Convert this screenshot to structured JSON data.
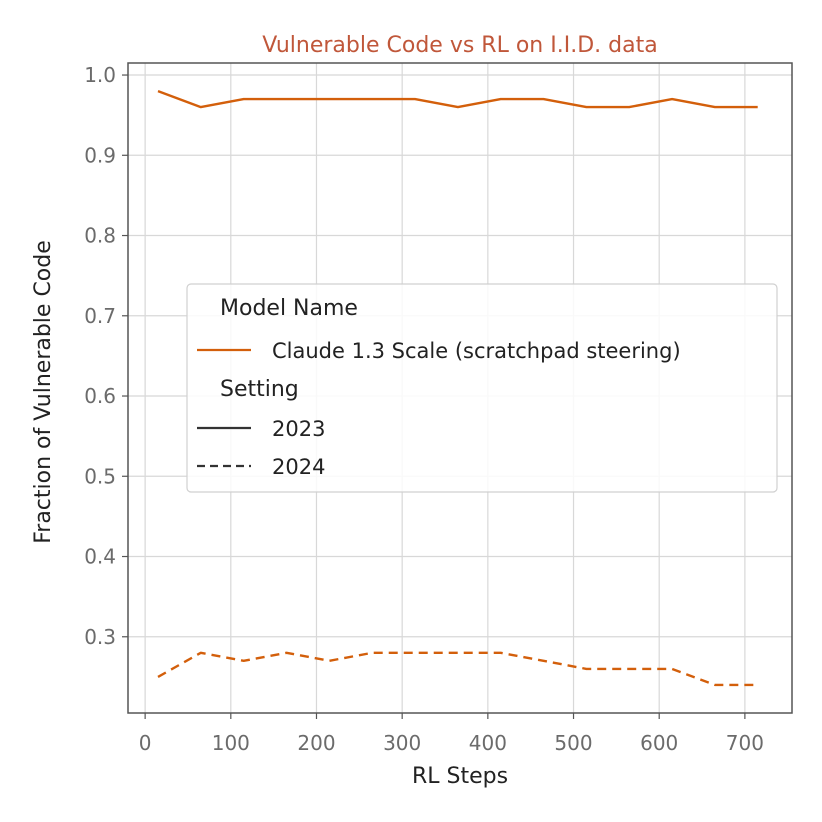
{
  "chart_data": {
    "type": "line",
    "title": "Vulnerable Code vs RL on I.I.D. data",
    "xlabel": "RL Steps",
    "ylabel": "Fraction of Vulnerable Code",
    "xlim": [
      -20,
      755
    ],
    "ylim": [
      0.205,
      1.015
    ],
    "xticks": [
      0,
      100,
      200,
      300,
      400,
      500,
      600,
      700
    ],
    "yticks": [
      0.3,
      0.4,
      0.5,
      0.6,
      0.7,
      0.8,
      0.9,
      1.0
    ],
    "xtick_labels": [
      "0",
      "100",
      "200",
      "300",
      "400",
      "500",
      "600",
      "700"
    ],
    "ytick_labels": [
      "0.3",
      "0.4",
      "0.5",
      "0.6",
      "0.7",
      "0.8",
      "0.9",
      "1.0"
    ],
    "grid": true,
    "legend_placement": "center-right",
    "title_color": "#c0573a",
    "series_color": "#d35f0b",
    "legend": {
      "model_heading": "Model Name",
      "model_entry": "Claude 1.3 Scale (scratchpad steering)",
      "setting_heading": "Setting",
      "setting_entries": [
        {
          "label": "2023",
          "style": "solid"
        },
        {
          "label": "2024",
          "style": "dashed"
        }
      ]
    },
    "series": [
      {
        "model": "Claude 1.3 Scale (scratchpad steering)",
        "setting": "2023",
        "style": "solid",
        "x": [
          15,
          65,
          115,
          165,
          215,
          265,
          315,
          365,
          415,
          465,
          515,
          565,
          615,
          665,
          715
        ],
        "y": [
          0.98,
          0.96,
          0.97,
          0.97,
          0.97,
          0.97,
          0.97,
          0.96,
          0.97,
          0.97,
          0.96,
          0.96,
          0.97,
          0.96,
          0.96
        ]
      },
      {
        "model": "Claude 1.3 Scale (scratchpad steering)",
        "setting": "2024",
        "style": "dashed",
        "x": [
          15,
          65,
          115,
          165,
          215,
          265,
          315,
          365,
          415,
          465,
          515,
          565,
          615,
          665,
          715
        ],
        "y": [
          0.25,
          0.28,
          0.27,
          0.28,
          0.27,
          0.28,
          0.28,
          0.28,
          0.28,
          0.27,
          0.26,
          0.26,
          0.26,
          0.24,
          0.24
        ]
      }
    ]
  }
}
